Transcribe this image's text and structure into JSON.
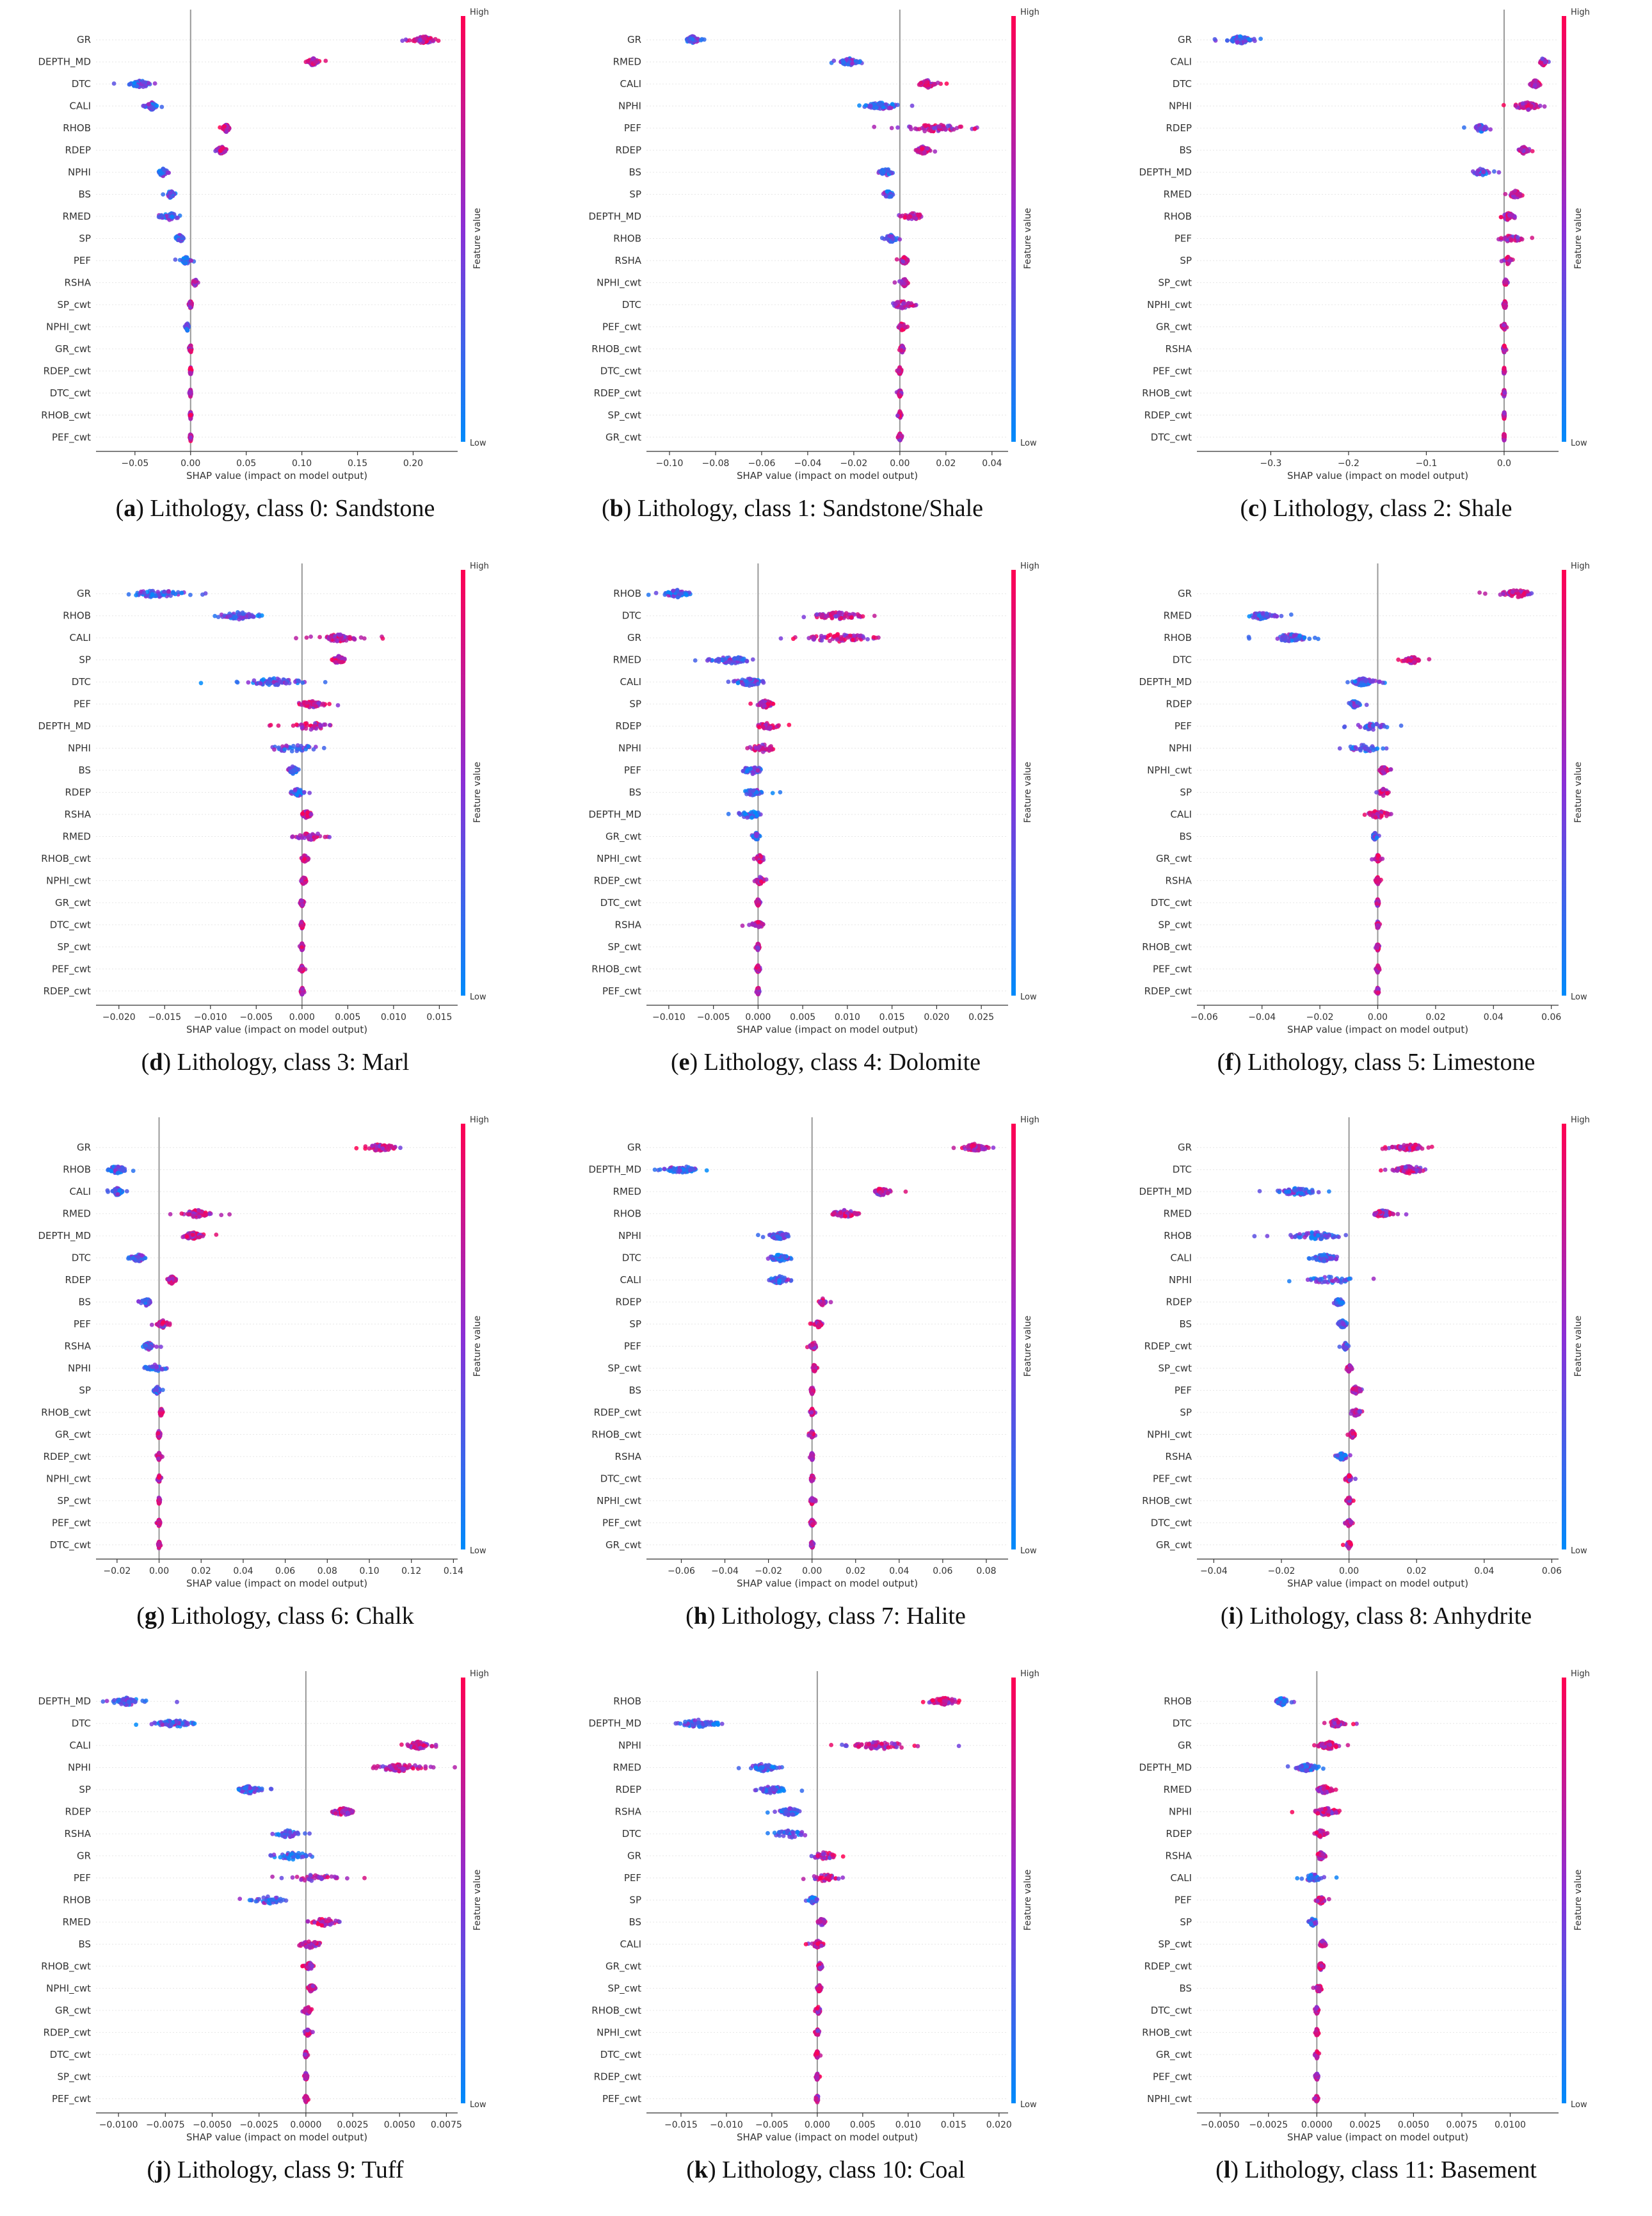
{
  "colors": {
    "high": "#ff0052",
    "low": "#008bfb",
    "mid": "#8b2fd6",
    "grid": "#e6e6e6",
    "zero": "#999999"
  },
  "common": {
    "xlabel": "SHAP value (impact on model output)",
    "colorbar_title": "Feature value",
    "high_label": "High",
    "low_label": "Low"
  },
  "chart_data": [
    {
      "id": "a",
      "letter": "a",
      "caption_rest": "Lithology, class 0: Sandstone",
      "type": "scatter",
      "xlim": [
        -0.085,
        0.24
      ],
      "ticks": [
        -0.05,
        0,
        0.05,
        0.1,
        0.15,
        0.2
      ],
      "tick_labels": [
        "−0.05",
        "0.00",
        "0.05",
        "0.10",
        "0.15",
        "0.20"
      ],
      "features": [
        "GR",
        "DEPTH_MD",
        "DTC",
        "CALI",
        "RHOB",
        "RDEP",
        "NPHI",
        "BS",
        "RMED",
        "SP",
        "PEF",
        "RSHA",
        "SP_cwt",
        "NPHI_cwt",
        "GR_cwt",
        "RDEP_cwt",
        "DTC_cwt",
        "RHOB_cwt",
        "PEF_cwt"
      ],
      "centers": [
        0.21,
        0.11,
        -0.045,
        -0.035,
        0.032,
        0.028,
        -0.025,
        -0.018,
        -0.02,
        -0.01,
        -0.004,
        0.004,
        0,
        -0.003,
        0,
        0,
        0,
        0,
        0
      ],
      "spreads": [
        0.012,
        0.006,
        0.012,
        0.006,
        0.004,
        0.006,
        0.006,
        0.004,
        0.014,
        0.005,
        0.007,
        0.003,
        0.002,
        0.002,
        0.002,
        0.001,
        0.001,
        0.001,
        0.001
      ]
    },
    {
      "id": "b",
      "letter": "b",
      "caption_rest": "Lithology, class 1: Sandstone/Shale",
      "type": "scatter",
      "xlim": [
        -0.11,
        0.047
      ],
      "ticks": [
        -0.1,
        -0.08,
        -0.06,
        -0.04,
        -0.02,
        0,
        0.02,
        0.04
      ],
      "tick_labels": [
        "−0.10",
        "−0.08",
        "−0.06",
        "−0.04",
        "−0.02",
        "0.00",
        "0.02",
        "0.04"
      ],
      "features": [
        "GR",
        "RMED",
        "CALI",
        "NPHI",
        "PEF",
        "RDEP",
        "BS",
        "SP",
        "DEPTH_MD",
        "RHOB",
        "RSHA",
        "NPHI_cwt",
        "DTC",
        "PEF_cwt",
        "RHOB_cwt",
        "DTC_cwt",
        "RDEP_cwt",
        "SP_cwt",
        "GR_cwt"
      ],
      "centers": [
        -0.09,
        -0.022,
        0.012,
        -0.008,
        0.015,
        0.01,
        -0.006,
        -0.005,
        0.006,
        -0.004,
        0.002,
        0.002,
        0.001,
        0.001,
        0.001,
        0,
        0,
        0,
        0
      ],
      "spreads": [
        0.004,
        0.005,
        0.004,
        0.01,
        0.02,
        0.004,
        0.004,
        0.003,
        0.006,
        0.004,
        0.002,
        0.002,
        0.007,
        0.002,
        0.001,
        0.001,
        0.001,
        0.001,
        0.001
      ]
    },
    {
      "id": "c",
      "letter": "c",
      "caption_rest": "Lithology, class 2: Shale",
      "type": "scatter",
      "xlim": [
        -0.395,
        0.07
      ],
      "ticks": [
        -0.3,
        -0.2,
        -0.1,
        0
      ],
      "tick_labels": [
        "−0.3",
        "−0.2",
        "−0.1",
        "0.0"
      ],
      "features": [
        "GR",
        "CALI",
        "DTC",
        "NPHI",
        "RDEP",
        "BS",
        "DEPTH_MD",
        "RMED",
        "RHOB",
        "PEF",
        "SP",
        "SP_cwt",
        "NPHI_cwt",
        "GR_cwt",
        "RSHA",
        "PEF_cwt",
        "RHOB_cwt",
        "RDEP_cwt",
        "DTC_cwt"
      ],
      "centers": [
        -0.34,
        0.05,
        0.04,
        0.03,
        -0.03,
        0.025,
        -0.03,
        0.015,
        0.005,
        0.01,
        0.005,
        0.002,
        0.001,
        0,
        0,
        0,
        0,
        0,
        0
      ],
      "spreads": [
        0.02,
        0.005,
        0.008,
        0.02,
        0.01,
        0.006,
        0.012,
        0.012,
        0.015,
        0.02,
        0.006,
        0.003,
        0.003,
        0.002,
        0.002,
        0.001,
        0.001,
        0.001,
        0.001
      ]
    },
    {
      "id": "d",
      "letter": "d",
      "caption_rest": "Lithology, class 3: Marl",
      "type": "scatter",
      "xlim": [
        -0.0225,
        0.017
      ],
      "ticks": [
        -0.02,
        -0.015,
        -0.01,
        -0.005,
        0,
        0.005,
        0.01,
        0.015
      ],
      "tick_labels": [
        "−0.020",
        "−0.015",
        "−0.010",
        "−0.005",
        "0.000",
        "0.005",
        "0.010",
        "0.015"
      ],
      "features": [
        "GR",
        "RHOB",
        "CALI",
        "SP",
        "DTC",
        "PEF",
        "DEPTH_MD",
        "NPHI",
        "BS",
        "RDEP",
        "RSHA",
        "RMED",
        "RHOB_cwt",
        "NPHI_cwt",
        "GR_cwt",
        "DTC_cwt",
        "SP_cwt",
        "PEF_cwt",
        "RDEP_cwt"
      ],
      "centers": [
        -0.016,
        -0.007,
        0.004,
        0.004,
        -0.003,
        0.001,
        0.001,
        -0.001,
        -0.001,
        -0.0005,
        0.0005,
        0.001,
        0.0003,
        0.0002,
        0,
        0,
        0,
        0,
        0
      ],
      "spreads": [
        0.004,
        0.003,
        0.003,
        0.001,
        0.004,
        0.0015,
        0.003,
        0.004,
        0.0008,
        0.001,
        0.0008,
        0.0025,
        0.0005,
        0.0004,
        0.0003,
        0.0002,
        0.0002,
        0.0002,
        0.0002
      ]
    },
    {
      "id": "e",
      "letter": "e",
      "caption_rest": "Lithology, class 4: Dolomite",
      "type": "scatter",
      "xlim": [
        -0.0125,
        0.028
      ],
      "ticks": [
        -0.01,
        -0.005,
        0,
        0.005,
        0.01,
        0.015,
        0.02,
        0.025
      ],
      "tick_labels": [
        "−0.010",
        "−0.005",
        "0.000",
        "0.005",
        "0.010",
        "0.015",
        "0.020",
        "0.025"
      ],
      "features": [
        "RHOB",
        "DTC",
        "GR",
        "RMED",
        "CALI",
        "SP",
        "RDEP",
        "NPHI",
        "PEF",
        "BS",
        "DEPTH_MD",
        "GR_cwt",
        "NPHI_cwt",
        "RDEP_cwt",
        "DTC_cwt",
        "RSHA",
        "SP_cwt",
        "RHOB_cwt",
        "PEF_cwt"
      ],
      "centers": [
        -0.009,
        0.009,
        0.009,
        -0.003,
        -0.001,
        0.0008,
        0.001,
        0.0005,
        -0.0005,
        -0.0005,
        -0.001,
        -0.0002,
        0.0002,
        0.0002,
        0,
        0,
        0,
        0,
        0
      ],
      "spreads": [
        0.002,
        0.004,
        0.006,
        0.003,
        0.002,
        0.001,
        0.0015,
        0.002,
        0.002,
        0.0015,
        0.002,
        0.0005,
        0.0006,
        0.0006,
        0.0003,
        0.0008,
        0.0002,
        0.0003,
        0.0002
      ]
    },
    {
      "id": "f",
      "letter": "f",
      "caption_rest": "Lithology, class 5: Limestone",
      "type": "scatter",
      "xlim": [
        -0.0625,
        0.0625
      ],
      "ticks": [
        -0.06,
        -0.04,
        -0.02,
        0,
        0.02,
        0.04,
        0.06
      ],
      "tick_labels": [
        "−0.06",
        "−0.04",
        "−0.02",
        "0.00",
        "0.02",
        "0.04",
        "0.06"
      ],
      "features": [
        "GR",
        "RMED",
        "RHOB",
        "DTC",
        "DEPTH_MD",
        "RDEP",
        "PEF",
        "NPHI",
        "NPHI_cwt",
        "SP",
        "CALI",
        "BS",
        "GR_cwt",
        "RSHA",
        "DTC_cwt",
        "SP_cwt",
        "RHOB_cwt",
        "PEF_cwt",
        "RDEP_cwt"
      ],
      "centers": [
        0.048,
        -0.04,
        -0.03,
        0.012,
        -0.005,
        -0.008,
        -0.002,
        -0.005,
        0.002,
        0.002,
        0,
        -0.001,
        0,
        0,
        0,
        0,
        0,
        0,
        0
      ],
      "spreads": [
        0.008,
        0.006,
        0.008,
        0.003,
        0.006,
        0.002,
        0.006,
        0.01,
        0.002,
        0.002,
        0.005,
        0.001,
        0.001,
        0.0008,
        0.0006,
        0.0006,
        0.0006,
        0.0006,
        0.0006
      ]
    },
    {
      "id": "g",
      "letter": "g",
      "caption_rest": "Lithology, class 6: Chalk",
      "type": "scatter",
      "xlim": [
        -0.03,
        0.142
      ],
      "ticks": [
        -0.02,
        0,
        0.02,
        0.04,
        0.06,
        0.08,
        0.1,
        0.12,
        0.14
      ],
      "tick_labels": [
        "−0.02",
        "0.00",
        "0.02",
        "0.04",
        "0.06",
        "0.08",
        "0.10",
        "0.12",
        "0.14"
      ],
      "features": [
        "GR",
        "RHOB",
        "CALI",
        "RMED",
        "DEPTH_MD",
        "DTC",
        "RDEP",
        "BS",
        "PEF",
        "RSHA",
        "NPHI",
        "SP",
        "RHOB_cwt",
        "GR_cwt",
        "RDEP_cwt",
        "NPHI_cwt",
        "SP_cwt",
        "PEF_cwt",
        "DTC_cwt"
      ],
      "centers": [
        0.105,
        -0.02,
        -0.02,
        0.018,
        0.016,
        -0.01,
        0.006,
        -0.006,
        0.002,
        -0.005,
        -0.002,
        -0.001,
        0.001,
        0,
        0,
        0,
        0,
        0,
        0
      ],
      "spreads": [
        0.01,
        0.006,
        0.003,
        0.008,
        0.006,
        0.005,
        0.003,
        0.003,
        0.004,
        0.003,
        0.007,
        0.002,
        0.001,
        0.001,
        0.001,
        0.0006,
        0.0006,
        0.0006,
        0.0006
      ]
    },
    {
      "id": "h",
      "letter": "h",
      "caption_rest": "Lithology, class 7: Halite",
      "type": "scatter",
      "xlim": [
        -0.076,
        0.09
      ],
      "ticks": [
        -0.06,
        -0.04,
        -0.02,
        0,
        0.02,
        0.04,
        0.06,
        0.08
      ],
      "tick_labels": [
        "−0.06",
        "−0.04",
        "−0.02",
        "0.00",
        "0.02",
        "0.04",
        "0.06",
        "0.08"
      ],
      "features": [
        "GR",
        "DEPTH_MD",
        "RMED",
        "RHOB",
        "NPHI",
        "DTC",
        "CALI",
        "RDEP",
        "SP",
        "PEF",
        "SP_cwt",
        "BS",
        "RDEP_cwt",
        "RHOB_cwt",
        "RSHA",
        "DTC_cwt",
        "NPHI_cwt",
        "PEF_cwt",
        "GR_cwt"
      ],
      "centers": [
        0.075,
        -0.06,
        0.032,
        0.015,
        -0.015,
        -0.015,
        -0.015,
        0.005,
        0.003,
        0.001,
        0.001,
        0,
        0,
        0,
        0,
        0,
        0,
        0,
        0
      ],
      "spreads": [
        0.008,
        0.01,
        0.005,
        0.008,
        0.006,
        0.006,
        0.006,
        0.002,
        0.002,
        0.003,
        0.001,
        0.001,
        0.001,
        0.001,
        0.001,
        0.001,
        0.001,
        0.001,
        0.001
      ]
    },
    {
      "id": "i",
      "letter": "i",
      "caption_rest": "Lithology, class 8: Anhydrite",
      "type": "scatter",
      "xlim": [
        -0.045,
        0.062
      ],
      "ticks": [
        -0.04,
        -0.02,
        0,
        0.02,
        0.04,
        0.06
      ],
      "tick_labels": [
        "−0.04",
        "−0.02",
        "0.00",
        "0.02",
        "0.04",
        "0.06"
      ],
      "features": [
        "GR",
        "DTC",
        "DEPTH_MD",
        "RMED",
        "RHOB",
        "CALI",
        "NPHI",
        "RDEP",
        "BS",
        "RDEP_cwt",
        "SP_cwt",
        "PEF",
        "SP",
        "NPHI_cwt",
        "RSHA",
        "PEF_cwt",
        "RHOB_cwt",
        "DTC_cwt",
        "GR_cwt"
      ],
      "centers": [
        0.018,
        0.018,
        -0.015,
        0.01,
        -0.01,
        -0.007,
        -0.005,
        -0.003,
        -0.002,
        -0.001,
        0,
        0.002,
        0.002,
        0.001,
        -0.002,
        0,
        0,
        0,
        0
      ],
      "spreads": [
        0.006,
        0.006,
        0.008,
        0.004,
        0.01,
        0.005,
        0.009,
        0.002,
        0.002,
        0.001,
        0.001,
        0.002,
        0.002,
        0.001,
        0.002,
        0.001,
        0.001,
        0.001,
        0.001
      ]
    },
    {
      "id": "j",
      "letter": "j",
      "caption_rest": "Lithology, class 9: Tuff",
      "type": "scatter",
      "xlim": [
        -0.0112,
        0.0081
      ],
      "ticks": [
        -0.01,
        -0.0075,
        -0.005,
        -0.0025,
        0,
        0.0025,
        0.005,
        0.0075
      ],
      "tick_labels": [
        "−0.0100",
        "−0.0075",
        "−0.0050",
        "−0.0025",
        "0.0000",
        "0.0025",
        "0.0050",
        "0.0075"
      ],
      "features": [
        "DEPTH_MD",
        "DTC",
        "CALI",
        "NPHI",
        "SP",
        "RDEP",
        "RSHA",
        "GR",
        "PEF",
        "RHOB",
        "RMED",
        "BS",
        "RHOB_cwt",
        "NPHI_cwt",
        "GR_cwt",
        "RDEP_cwt",
        "DTC_cwt",
        "SP_cwt",
        "PEF_cwt"
      ],
      "centers": [
        -0.0095,
        -0.007,
        0.006,
        0.005,
        -0.003,
        0.002,
        -0.001,
        -0.0008,
        0.0005,
        -0.002,
        0.001,
        0.0002,
        0.0002,
        0.0003,
        0.0001,
        0.0001,
        0,
        0,
        0
      ],
      "spreads": [
        0.0012,
        0.0015,
        0.0008,
        0.002,
        0.0008,
        0.0008,
        0.0008,
        0.0015,
        0.0015,
        0.0012,
        0.0012,
        0.0008,
        0.0003,
        0.0003,
        0.0003,
        0.0002,
        0.0001,
        0.0001,
        0.0001
      ]
    },
    {
      "id": "k",
      "letter": "k",
      "caption_rest": "Lithology, class 10: Coal",
      "type": "scatter",
      "xlim": [
        -0.0188,
        0.021
      ],
      "ticks": [
        -0.015,
        -0.01,
        -0.005,
        0,
        0.005,
        0.01,
        0.015,
        0.02
      ],
      "tick_labels": [
        "−0.015",
        "−0.010",
        "−0.005",
        "0.000",
        "0.005",
        "0.010",
        "0.015",
        "0.020"
      ],
      "features": [
        "RHOB",
        "DEPTH_MD",
        "NPHI",
        "RMED",
        "RDEP",
        "RSHA",
        "DTC",
        "GR",
        "PEF",
        "SP",
        "BS",
        "CALI",
        "GR_cwt",
        "SP_cwt",
        "RHOB_cwt",
        "NPHI_cwt",
        "DTC_cwt",
        "RDEP_cwt",
        "PEF_cwt"
      ],
      "centers": [
        0.014,
        -0.013,
        0.007,
        -0.006,
        -0.005,
        -0.003,
        -0.003,
        0.0008,
        0.0008,
        -0.0005,
        0.0005,
        0,
        0.0003,
        0.0002,
        0.0001,
        0,
        0,
        0,
        0
      ],
      "spreads": [
        0.002,
        0.003,
        0.005,
        0.002,
        0.002,
        0.0015,
        0.003,
        0.002,
        0.002,
        0.0006,
        0.0005,
        0.0008,
        0.0003,
        0.0003,
        0.0003,
        0.0002,
        0.0002,
        0.0002,
        0.0002
      ]
    },
    {
      "id": "l",
      "letter": "l",
      "caption_rest": "Lithology, class 11: Basement",
      "type": "scatter",
      "xlim": [
        -0.0062,
        0.0125
      ],
      "ticks": [
        -0.005,
        -0.0025,
        0,
        0.0025,
        0.005,
        0.0075,
        0.01
      ],
      "tick_labels": [
        "−0.0050",
        "−0.0025",
        "0.0000",
        "0.0025",
        "0.0050",
        "0.0075",
        "0.0100"
      ],
      "features": [
        "RHOB",
        "DTC",
        "GR",
        "DEPTH_MD",
        "RMED",
        "NPHI",
        "RDEP",
        "RSHA",
        "CALI",
        "PEF",
        "SP",
        "SP_cwt",
        "RDEP_cwt",
        "BS",
        "DTC_cwt",
        "RHOB_cwt",
        "GR_cwt",
        "PEF_cwt",
        "NPHI_cwt"
      ],
      "centers": [
        -0.0018,
        0.001,
        0.0006,
        -0.0005,
        0.0004,
        0.0005,
        0.0002,
        0.0002,
        -0.0002,
        0.0002,
        -0.0002,
        0.0003,
        0.0002,
        0.0001,
        0,
        0,
        0,
        0,
        0
      ],
      "spreads": [
        0.0004,
        0.0005,
        0.0008,
        0.0008,
        0.0005,
        0.0008,
        0.0004,
        0.0003,
        0.0006,
        0.0003,
        0.0003,
        0.0002,
        0.0002,
        0.0002,
        0.0001,
        0.0001,
        0.0001,
        0.0001,
        0.0001
      ]
    }
  ]
}
